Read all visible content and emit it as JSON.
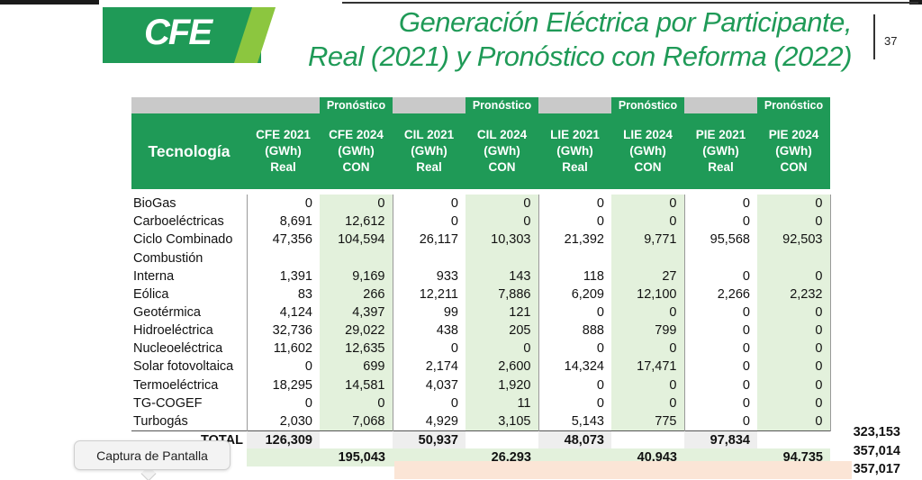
{
  "header": {
    "logo_text": "CFE",
    "title_line1": "Generación Eléctrica por Participante,",
    "title_line2": "Real (2021) y Pronóstico con Reforma (2022)",
    "page_number": "37",
    "colors": {
      "green": "#1f9a57",
      "light_green": "#8cc63f",
      "con_fill": "#e3f1dc",
      "peach": "#fbe5d6"
    }
  },
  "table": {
    "pronostico_label": "Pronóstico",
    "tecnologia_label": "Tecnología",
    "columns": [
      {
        "l1": "CFE 2021",
        "l2": "(GWh)",
        "l3": "Real"
      },
      {
        "l1": "CFE 2024",
        "l2": "(GWh)",
        "l3": "CON"
      },
      {
        "l1": "CIL 2021",
        "l2": "(GWh)",
        "l3": "Real"
      },
      {
        "l1": "CIL 2024",
        "l2": "(GWh)",
        "l3": "CON"
      },
      {
        "l1": "LIE 2021",
        "l2": "(GWh)",
        "l3": "Real"
      },
      {
        "l1": "LIE 2024",
        "l2": "(GWh)",
        "l3": "CON"
      },
      {
        "l1": "PIE 2021",
        "l2": "(GWh)",
        "l3": "Real"
      },
      {
        "l1": "PIE 2024",
        "l2": "(GWh)",
        "l3": "CON"
      }
    ],
    "rows": [
      {
        "name": "BioGas",
        "values": [
          "0",
          "0",
          "0",
          "0",
          "0",
          "0",
          "0",
          "0"
        ]
      },
      {
        "name": "Carboeléctricas",
        "values": [
          "8,691",
          "12,612",
          "0",
          "0",
          "0",
          "0",
          "0",
          "0"
        ]
      },
      {
        "name": "Ciclo Combinado",
        "values": [
          "47,356",
          "104,594",
          "26,117",
          "10,303",
          "21,392",
          "9,771",
          "95,568",
          "92,503"
        ]
      },
      {
        "name": "Combustión",
        "name2": "Interna",
        "values": [
          "1,391",
          "9,169",
          "933",
          "143",
          "118",
          "27",
          "0",
          "0"
        ]
      },
      {
        "name": "Eólica",
        "values": [
          "83",
          "266",
          "12,211",
          "7,886",
          "6,209",
          "12,100",
          "2,266",
          "2,232"
        ]
      },
      {
        "name": "Geotérmica",
        "values": [
          "4,124",
          "4,397",
          "99",
          "121",
          "0",
          "0",
          "0",
          "0"
        ]
      },
      {
        "name": "Hidroeléctrica",
        "values": [
          "32,736",
          "29,022",
          "438",
          "205",
          "888",
          "799",
          "0",
          "0"
        ]
      },
      {
        "name": "Nucleoeléctrica",
        "values": [
          "11,602",
          "12,635",
          "0",
          "0",
          "0",
          "0",
          "0",
          "0"
        ]
      },
      {
        "name": "Solar fotovoltaica",
        "values": [
          "0",
          "699",
          "2,174",
          "2,600",
          "14,324",
          "17,471",
          "0",
          "0"
        ]
      },
      {
        "name": "Termoeléctrica",
        "values": [
          "18,295",
          "14,581",
          "4,037",
          "1,920",
          "0",
          "0",
          "0",
          "0"
        ]
      },
      {
        "name": "TG-COGEF",
        "values": [
          "0",
          "0",
          "0",
          "11",
          "0",
          "0",
          "0",
          "0"
        ]
      },
      {
        "name": "Turbogás",
        "values": [
          "2,030",
          "7,068",
          "4,929",
          "3,105",
          "5,143",
          "775",
          "0",
          "0"
        ]
      }
    ],
    "total_label": "TOTAL",
    "total_real": [
      "126,309",
      "50,937",
      "48,073",
      "97,834"
    ],
    "total_con": [
      "195,043",
      "26,293",
      "40,943",
      "94,735"
    ],
    "grand_total_real": "323,153",
    "grand_total_con": "357,014",
    "grand_total_extra": "357,017"
  },
  "tooltip": {
    "text": "Captura de Pantalla"
  }
}
